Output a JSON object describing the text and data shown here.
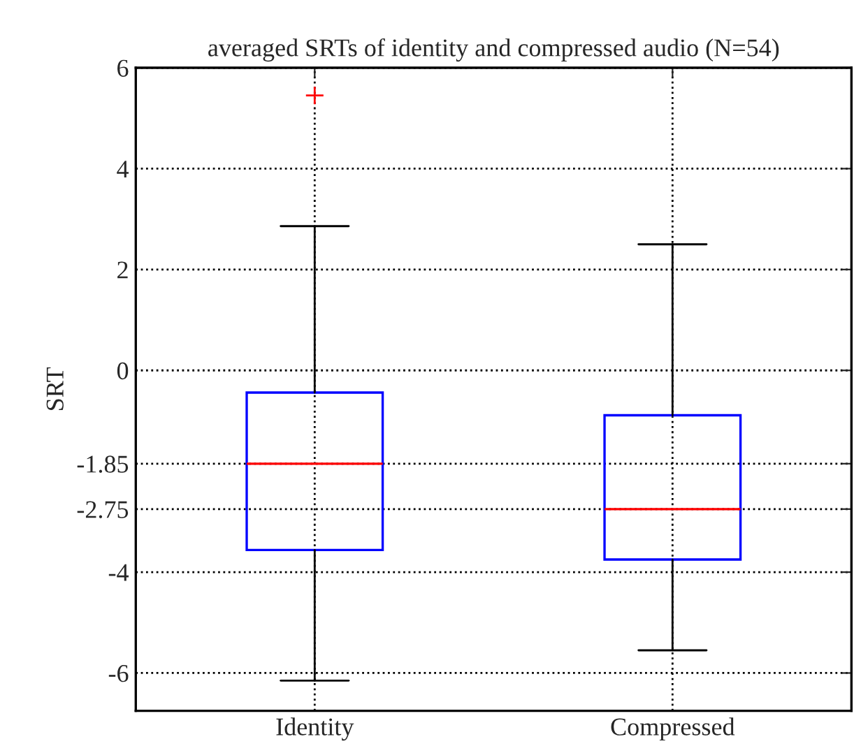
{
  "chart_data": {
    "type": "box",
    "title": "averaged SRTs of identity and compressed audio (N=54)",
    "ylabel": "SRT",
    "categories": [
      "Identity",
      "Compressed"
    ],
    "boxes": [
      {
        "low": -6.15,
        "q1": -3.56,
        "median": -1.85,
        "q3": -0.44,
        "high": 2.86,
        "outliers": [
          5.45
        ]
      },
      {
        "low": -5.55,
        "q1": -3.75,
        "median": -2.75,
        "q3": -0.89,
        "high": 2.5
      }
    ],
    "ylim": [
      -6.75,
      6
    ],
    "yticks": [
      -6,
      -4,
      -2.75,
      -1.85,
      0,
      2,
      4,
      6
    ],
    "grid": true
  }
}
